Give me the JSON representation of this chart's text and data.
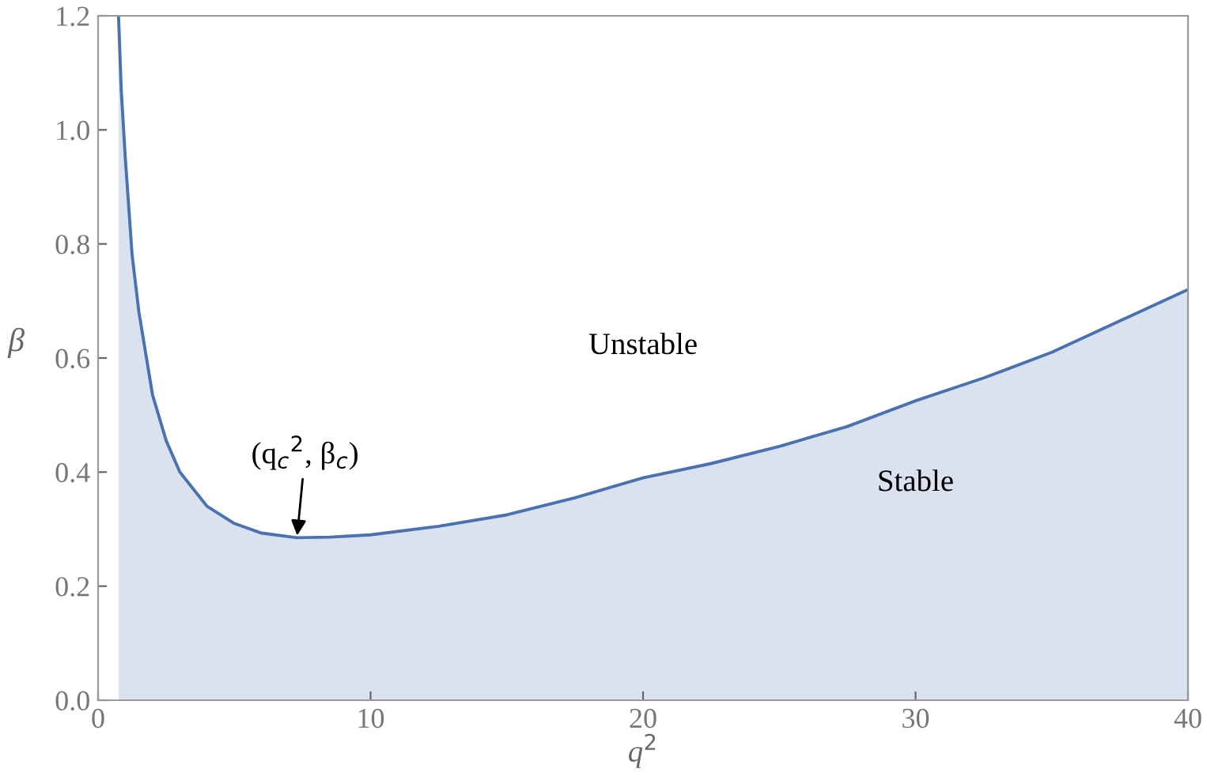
{
  "chart_data": {
    "type": "area",
    "xlabel": "q$^{2}$",
    "ylabel": "β",
    "x": [
      0.75,
      0.85,
      1,
      1.25,
      1.5,
      2,
      2.5,
      3,
      4,
      5,
      6,
      7.3,
      8.5,
      10,
      12.5,
      15,
      17.5,
      20,
      22.5,
      25,
      27.5,
      30,
      32.5,
      35,
      37.5,
      40
    ],
    "series": [
      {
        "color": "#4a72b0",
        "values": [
          1.2,
          1.07,
          0.95,
          0.78,
          0.68,
          0.535,
          0.455,
          0.4,
          0.34,
          0.31,
          0.293,
          0.285,
          0.286,
          0.29,
          0.305,
          0.325,
          0.355,
          0.39,
          0.415,
          0.445,
          0.48,
          0.525,
          0.565,
          0.61,
          0.665,
          0.72
        ]
      }
    ],
    "xlim": [
      0,
      40
    ],
    "ylim": [
      0,
      1.2
    ],
    "xticks": [
      0,
      10,
      20,
      30,
      40
    ],
    "yticks": [
      {
        "value": 0,
        "label": "0.0"
      },
      {
        "value": 0.2,
        "label": "0.2"
      },
      {
        "value": 0.4,
        "label": "0.4"
      },
      {
        "value": 0.6,
        "label": "0.6"
      },
      {
        "value": 0.8,
        "label": "0.8"
      },
      {
        "value": 1.0,
        "label": "1.0"
      },
      {
        "value": 1.2,
        "label": "1.2"
      }
    ],
    "annotations": [
      {
        "text": "(q$_{c}$$^{2}$, β$_{c}$)",
        "x": 7.3,
        "y": 0.285
      },
      "Unstable",
      "Stable"
    ],
    "grid": false,
    "legend": false
  }
}
